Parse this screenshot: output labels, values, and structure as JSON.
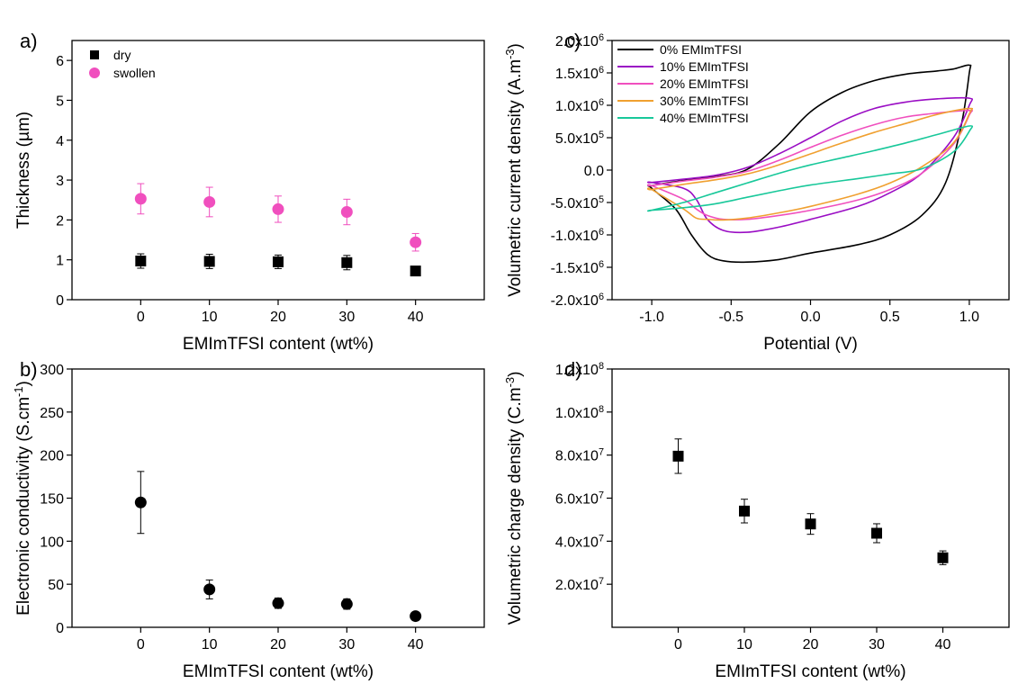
{
  "chart_data": [
    {
      "type": "scatter",
      "panel": "a)",
      "title": "",
      "xlabel": "EMImTFSI content (wt%)",
      "ylabel": "Thickness (µm)",
      "x": [
        0,
        10,
        20,
        30,
        40
      ],
      "xlim": [
        -10,
        50
      ],
      "ylim": [
        0,
        6.5
      ],
      "x_ticks": [
        "0",
        "10",
        "20",
        "30",
        "40"
      ],
      "y_ticks": [
        "0",
        "1",
        "2",
        "3",
        "4",
        "5",
        "6"
      ],
      "series": [
        {
          "name": "dry",
          "marker": "square",
          "color": "#000000",
          "values": [
            0.97,
            0.96,
            0.95,
            0.93,
            0.72
          ],
          "errors": [
            0.18,
            0.18,
            0.17,
            0.18,
            0.1
          ]
        },
        {
          "name": "swollen",
          "marker": "circle",
          "color": "#f04fbe",
          "values": [
            2.53,
            2.45,
            2.27,
            2.2,
            1.44
          ],
          "errors": [
            0.38,
            0.37,
            0.33,
            0.32,
            0.22
          ]
        }
      ],
      "legend": "top-left",
      "grid": false
    },
    {
      "type": "scatter",
      "panel": "b)",
      "title": "",
      "xlabel": "EMImTFSI content (wt%)",
      "ylabel": "Electronic conductivity (S.cm⁻¹)",
      "x": [
        0,
        10,
        20,
        30,
        40
      ],
      "xlim": [
        -10,
        50
      ],
      "ylim": [
        0,
        300
      ],
      "x_ticks": [
        "0",
        "10",
        "20",
        "30",
        "40"
      ],
      "y_ticks": [
        "0",
        "50",
        "100",
        "150",
        "200",
        "250",
        "300"
      ],
      "series": [
        {
          "marker": "circle",
          "color": "#000000",
          "values": [
            145,
            44,
            28,
            27,
            13
          ],
          "errors": [
            36,
            11,
            6,
            6,
            2
          ]
        }
      ],
      "grid": false
    },
    {
      "type": "line",
      "panel": "c)",
      "title": "",
      "xlabel": "Potential (V)",
      "ylabel": "Volumetric current density (A.m⁻³)",
      "xlim": [
        -1.25,
        1.25
      ],
      "ylim": [
        -2000000,
        2000000
      ],
      "x_ticks": [
        "-1.0",
        "-0.5",
        "0.0",
        "0.5",
        "1.0"
      ],
      "y_ticks": [
        "-2.0x10⁶",
        "-1.5x10⁶",
        "-1.0x10⁶",
        "-5.0x10⁵",
        "0.0",
        "5.0x10⁵",
        "1.0x10⁶",
        "1.5x10⁶",
        "2.0x10⁶"
      ],
      "series": [
        {
          "name": "0% EMImTFSI",
          "color": "#000000",
          "x": [
            -1.0,
            -0.8,
            -0.6,
            -0.4,
            -0.2,
            0.0,
            0.2,
            0.4,
            0.6,
            0.8,
            0.9,
            1.0,
            1.0,
            0.95,
            0.85,
            0.7,
            0.5,
            0.3,
            0.0,
            -0.2,
            -0.4,
            -0.55,
            -0.65,
            -0.75,
            -0.85,
            -1.0
          ],
          "values": [
            -240000,
            -160000,
            -100000,
            10000,
            400000,
            900000,
            1200000,
            1380000,
            1480000,
            1530000,
            1560000,
            1620000,
            1500000,
            700000,
            -200000,
            -700000,
            -1000000,
            -1150000,
            -1280000,
            -1380000,
            -1420000,
            -1400000,
            -1300000,
            -1000000,
            -600000,
            -280000
          ]
        },
        {
          "name": "10% EMImTFSI",
          "color": "#9a0dc4",
          "x": [
            -1.0,
            -0.8,
            -0.6,
            -0.4,
            -0.2,
            0.0,
            0.2,
            0.4,
            0.6,
            0.8,
            1.0,
            1.0,
            0.9,
            0.7,
            0.5,
            0.3,
            0.0,
            -0.2,
            -0.4,
            -0.55,
            -0.65,
            -0.72,
            -0.8,
            -1.0
          ],
          "values": [
            -190000,
            -140000,
            -80000,
            40000,
            250000,
            500000,
            760000,
            950000,
            1050000,
            1100000,
            1110000,
            1000000,
            500000,
            -50000,
            -350000,
            -560000,
            -760000,
            -880000,
            -960000,
            -930000,
            -760000,
            -450000,
            -280000,
            -190000
          ]
        },
        {
          "name": "20% EMImTFSI",
          "color": "#f04fbe",
          "x": [
            -1.0,
            -0.8,
            -0.6,
            -0.4,
            -0.2,
            0.0,
            0.2,
            0.4,
            0.6,
            0.8,
            1.0,
            1.0,
            0.9,
            0.7,
            0.5,
            0.3,
            0.0,
            -0.2,
            -0.4,
            -0.55,
            -0.65,
            -0.72,
            -0.8,
            -1.0
          ],
          "values": [
            -240000,
            -170000,
            -110000,
            -20000,
            150000,
            350000,
            540000,
            700000,
            820000,
            880000,
            920000,
            850000,
            400000,
            -50000,
            -300000,
            -460000,
            -620000,
            -700000,
            -760000,
            -760000,
            -700000,
            -600000,
            -450000,
            -240000
          ]
        },
        {
          "name": "30% EMImTFSI",
          "color": "#f0a030",
          "x": [
            -1.0,
            -0.8,
            -0.6,
            -0.4,
            -0.2,
            0.0,
            0.2,
            0.4,
            0.6,
            0.8,
            1.0,
            1.0,
            0.9,
            0.7,
            0.5,
            0.3,
            0.0,
            -0.2,
            -0.4,
            -0.55,
            -0.65,
            -0.72,
            -0.8,
            -1.0
          ],
          "values": [
            -300000,
            -220000,
            -150000,
            -60000,
            80000,
            250000,
            420000,
            580000,
            720000,
            860000,
            950000,
            870000,
            420000,
            50000,
            -200000,
            -370000,
            -560000,
            -660000,
            -740000,
            -770000,
            -760000,
            -740000,
            -600000,
            -300000
          ]
        },
        {
          "name": "40% EMImTFSI",
          "color": "#18c89a",
          "x": [
            -1.0,
            -0.8,
            -0.6,
            -0.4,
            -0.2,
            0.0,
            0.2,
            0.4,
            0.6,
            0.8,
            1.0,
            1.0,
            0.9,
            0.7,
            0.5,
            0.3,
            0.0,
            -0.2,
            -0.4,
            -0.6,
            -0.8,
            -1.0
          ],
          "values": [
            -620000,
            -500000,
            -350000,
            -200000,
            -50000,
            80000,
            190000,
            300000,
            420000,
            550000,
            680000,
            600000,
            280000,
            20000,
            -60000,
            -130000,
            -230000,
            -320000,
            -420000,
            -520000,
            -580000,
            -620000
          ]
        }
      ],
      "legend": "top-left",
      "grid": false
    },
    {
      "type": "scatter",
      "panel": "d)",
      "title": "",
      "xlabel": "EMImTFSI content (wt%)",
      "ylabel": "Volumetric charge density (C.m⁻³)",
      "x": [
        0,
        10,
        20,
        30,
        40
      ],
      "xlim": [
        -10,
        50
      ],
      "ylim": [
        0,
        120000000
      ],
      "x_ticks": [
        "0",
        "10",
        "20",
        "30",
        "40"
      ],
      "y_ticks": [
        "2.0x10⁷",
        "4.0x10⁷",
        "6.0x10⁷",
        "8.0x10⁷",
        "1.0x10⁸",
        "1.2x10⁸"
      ],
      "series": [
        {
          "marker": "square",
          "color": "#000000",
          "values": [
            79500000,
            54000000,
            48000000,
            43700000,
            32300000
          ],
          "errors": [
            8000000,
            5500000,
            4800000,
            4400000,
            3200000
          ]
        }
      ],
      "grid": false
    }
  ]
}
